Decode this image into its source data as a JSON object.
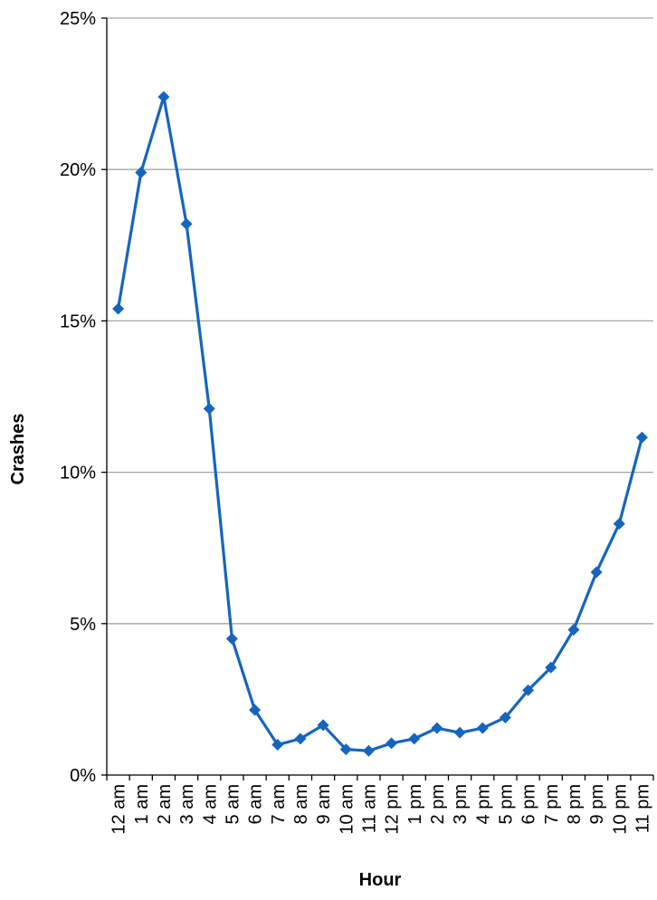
{
  "chart_data": {
    "type": "line",
    "title": "",
    "xlabel": "Hour",
    "ylabel": "Crashes",
    "ylim": [
      0,
      25
    ],
    "y_ticks": [
      "0%",
      "5%",
      "10%",
      "15%",
      "20%",
      "25%"
    ],
    "y_tick_values": [
      0,
      5,
      10,
      15,
      20,
      25
    ],
    "grid": true,
    "legend": "none",
    "categories": [
      "12 am",
      "1 am",
      "2 am",
      "3 am",
      "4 am",
      "5 am",
      "6 am",
      "7 am",
      "8 am",
      "9 am",
      "10 am",
      "11 am",
      "12 pm",
      "1 pm",
      "2 pm",
      "3 pm",
      "4 pm",
      "5 pm",
      "6 pm",
      "7 pm",
      "8 pm",
      "9 pm",
      "10 pm",
      "11 pm"
    ],
    "series": [
      {
        "values": [
          15.4,
          19.9,
          22.4,
          18.2,
          12.1,
          4.5,
          2.15,
          1.0,
          1.2,
          1.65,
          0.85,
          0.8,
          1.05,
          1.2,
          1.55,
          1.4,
          1.55,
          1.9,
          2.8,
          3.55,
          4.8,
          6.7,
          8.3,
          11.15
        ],
        "color": "#1565c0"
      }
    ],
    "colors": {
      "line": "#1565c0",
      "grid": "#a6a6a6",
      "axis": "#000000"
    }
  }
}
